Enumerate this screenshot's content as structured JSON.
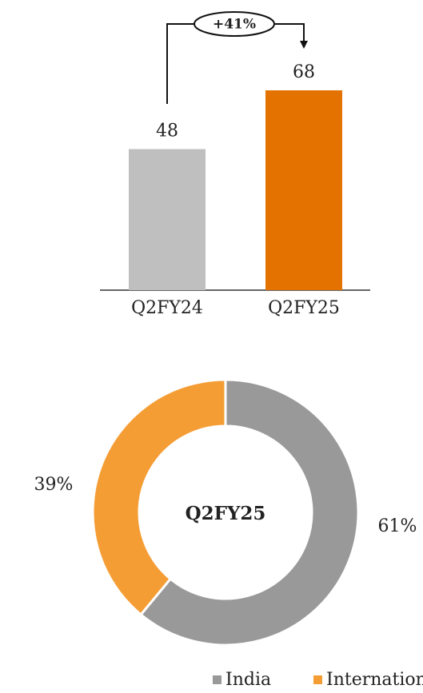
{
  "chart_data": [
    {
      "type": "bar",
      "categories": [
        "Q2FY24",
        "Q2FY25"
      ],
      "values": [
        48,
        68
      ],
      "colors": [
        "#bfbfbf",
        "#e37200"
      ],
      "annotation": "+41%"
    },
    {
      "type": "pie",
      "center_label": "Q2FY25",
      "categories": [
        "India",
        "International"
      ],
      "values": [
        61,
        39
      ],
      "value_labels": [
        "61%",
        "39%"
      ],
      "colors": [
        "#999999",
        "#f59d35"
      ]
    }
  ]
}
